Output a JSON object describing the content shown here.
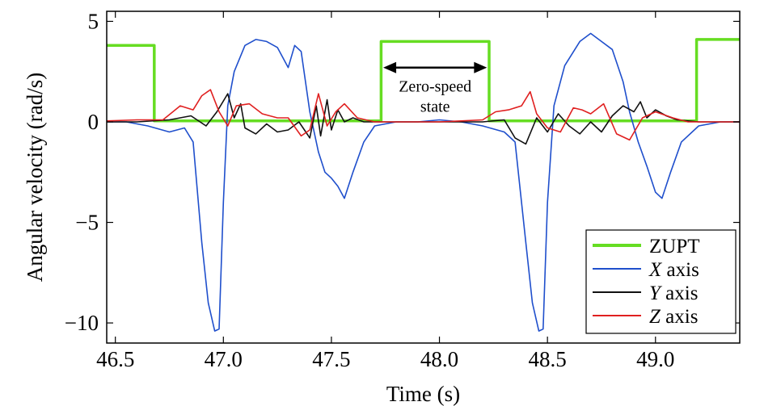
{
  "chart_data": {
    "type": "line",
    "xlabel": "Time (s)",
    "ylabel": "Angular velocity (rad/s)",
    "xlim": [
      46.46,
      49.39
    ],
    "ylim": [
      -11.0,
      5.5
    ],
    "x_ticks": [
      46.5,
      47.0,
      47.5,
      48.0,
      48.5,
      49.0
    ],
    "x_tick_labels": [
      "46.5",
      "47.0",
      "47.5",
      "48.0",
      "48.5",
      "49.0"
    ],
    "y_ticks": [
      5,
      0,
      -5,
      -10
    ],
    "y_tick_labels": [
      "5",
      "0",
      "−5",
      "−10"
    ],
    "legend_position": "bottom-right",
    "annotation": {
      "line1": "Zero-speed",
      "line2": "state",
      "x_start": 47.74,
      "x_end": 48.22,
      "y": 2.7
    },
    "series": [
      {
        "name": "ZUPT",
        "legend_main": "ZUPT",
        "legend_suffix": "",
        "color": "#66dd22",
        "x": [
          46.46,
          46.68,
          46.68,
          47.73,
          47.73,
          48.23,
          48.23,
          49.19,
          49.19,
          49.39
        ],
        "y": [
          3.8,
          3.8,
          0.05,
          0.05,
          4.0,
          4.0,
          0.05,
          0.05,
          4.1,
          4.1
        ]
      },
      {
        "name": "X axis",
        "legend_main": "X",
        "legend_suffix": " axis",
        "color": "#1f4fcc",
        "x": [
          46.46,
          46.55,
          46.65,
          46.75,
          46.82,
          46.86,
          46.9,
          46.93,
          46.96,
          46.98,
          47.0,
          47.02,
          47.05,
          47.1,
          47.15,
          47.2,
          47.25,
          47.3,
          47.33,
          47.36,
          47.4,
          47.44,
          47.47,
          47.5,
          47.53,
          47.56,
          47.6,
          47.65,
          47.7,
          47.8,
          47.9,
          48.0,
          48.1,
          48.2,
          48.3,
          48.35,
          48.4,
          48.43,
          48.46,
          48.48,
          48.5,
          48.53,
          48.58,
          48.65,
          48.7,
          48.75,
          48.8,
          48.85,
          48.88,
          48.92,
          48.96,
          49.0,
          49.03,
          49.07,
          49.12,
          49.2,
          49.3,
          49.39
        ],
        "y": [
          0.0,
          0.0,
          -0.2,
          -0.5,
          -0.3,
          -1.0,
          -6.0,
          -9.0,
          -10.4,
          -10.3,
          -4.0,
          0.8,
          2.5,
          3.8,
          4.1,
          4.0,
          3.7,
          2.7,
          3.8,
          3.5,
          0.5,
          -1.5,
          -2.5,
          -2.8,
          -3.2,
          -3.8,
          -2.5,
          -1.0,
          -0.2,
          0.0,
          0.0,
          0.1,
          0.0,
          -0.2,
          -0.5,
          -1.0,
          -6.0,
          -9.0,
          -10.4,
          -10.3,
          -4.0,
          0.8,
          2.8,
          4.0,
          4.4,
          4.0,
          3.6,
          2.0,
          0.5,
          -1.0,
          -2.2,
          -3.5,
          -3.8,
          -2.5,
          -1.0,
          -0.2,
          0.0,
          0.0
        ]
      },
      {
        "name": "Y axis",
        "legend_main": "Y",
        "legend_suffix": " axis",
        "color": "#111111",
        "x": [
          46.46,
          46.6,
          46.75,
          46.85,
          46.92,
          46.97,
          47.02,
          47.05,
          47.08,
          47.1,
          47.15,
          47.2,
          47.25,
          47.3,
          47.35,
          47.4,
          47.43,
          47.45,
          47.48,
          47.5,
          47.53,
          47.56,
          47.6,
          47.65,
          47.7,
          47.8,
          47.9,
          48.0,
          48.1,
          48.2,
          48.3,
          48.35,
          48.4,
          48.45,
          48.5,
          48.55,
          48.6,
          48.65,
          48.7,
          48.75,
          48.8,
          48.85,
          48.9,
          48.93,
          48.96,
          49.0,
          49.05,
          49.1,
          49.2,
          49.3,
          49.39
        ],
        "y": [
          0.0,
          0.0,
          0.1,
          0.3,
          -0.2,
          0.5,
          1.4,
          0.2,
          0.9,
          -0.3,
          -0.6,
          -0.1,
          -0.5,
          -0.4,
          0.0,
          -0.8,
          0.8,
          -0.7,
          1.1,
          -0.4,
          0.6,
          0.0,
          0.2,
          0.0,
          0.0,
          0.0,
          0.0,
          0.0,
          0.0,
          0.0,
          0.1,
          -0.8,
          -1.1,
          0.2,
          -0.5,
          0.4,
          -0.2,
          -0.6,
          0.0,
          -0.5,
          0.3,
          0.8,
          0.5,
          1.0,
          0.2,
          0.6,
          0.3,
          0.1,
          0.0,
          0.0,
          0.0
        ]
      },
      {
        "name": "Z axis",
        "legend_main": "Z",
        "legend_suffix": " axis",
        "color": "#e02020",
        "x": [
          46.46,
          46.6,
          46.72,
          46.8,
          46.86,
          46.9,
          46.94,
          46.98,
          47.02,
          47.06,
          47.12,
          47.18,
          47.25,
          47.3,
          47.36,
          47.4,
          47.44,
          47.48,
          47.52,
          47.56,
          47.62,
          47.7,
          47.8,
          47.9,
          48.0,
          48.1,
          48.2,
          48.26,
          48.32,
          48.38,
          48.42,
          48.45,
          48.5,
          48.56,
          48.62,
          48.66,
          48.7,
          48.76,
          48.82,
          48.88,
          48.94,
          49.0,
          49.08,
          49.15,
          49.2,
          49.3,
          49.39
        ],
        "y": [
          0.05,
          0.1,
          0.1,
          0.8,
          0.6,
          1.3,
          1.6,
          0.5,
          -0.2,
          0.8,
          0.9,
          0.4,
          0.2,
          0.2,
          -0.7,
          -0.4,
          1.4,
          -0.2,
          0.5,
          0.9,
          0.2,
          0.0,
          0.0,
          0.0,
          0.0,
          0.05,
          0.1,
          0.5,
          0.6,
          0.8,
          1.5,
          0.4,
          -0.3,
          -0.5,
          0.7,
          0.6,
          0.4,
          0.9,
          -0.6,
          -0.9,
          0.2,
          0.5,
          0.2,
          0.0,
          0.0,
          0.0,
          0.0
        ]
      }
    ]
  }
}
